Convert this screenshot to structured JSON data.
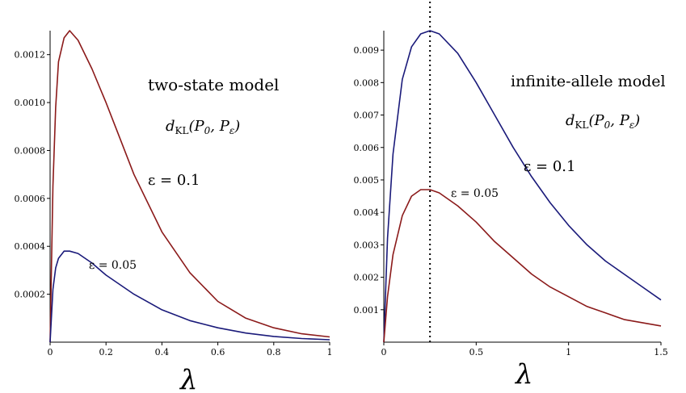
{
  "chart_data": [
    {
      "type": "line",
      "title": "two-state model",
      "subtitle": "d_KL(P0, Pε)",
      "xlabel": "λ",
      "ylabel": "",
      "xlim": [
        0,
        1
      ],
      "ylim": [
        0,
        0.0013
      ],
      "x_ticks": [
        "0",
        "0.2",
        "0.4",
        "0.6",
        "0.8",
        "1"
      ],
      "y_ticks": [
        "0.0002",
        "0.0004",
        "0.0006",
        "0.0008",
        "0.0010",
        "0.0012"
      ],
      "series": [
        {
          "name": "ε = 0.1",
          "color": "#8b1a1a",
          "x": [
            0,
            0.01,
            0.02,
            0.03,
            0.05,
            0.07,
            0.1,
            0.15,
            0.2,
            0.25,
            0.3,
            0.4,
            0.5,
            0.6,
            0.7,
            0.8,
            0.9,
            1.0
          ],
          "y": [
            0,
            0.00065,
            0.00098,
            0.00117,
            0.00127,
            0.0013,
            0.00126,
            0.00114,
            0.001,
            0.00085,
            0.0007,
            0.00046,
            0.00029,
            0.00017,
            0.0001,
            6e-05,
            3.5e-05,
            2.2e-05
          ]
        },
        {
          "name": "ε = 0.05",
          "color": "#1a1a7a",
          "x": [
            0,
            0.01,
            0.02,
            0.03,
            0.05,
            0.07,
            0.1,
            0.15,
            0.2,
            0.3,
            0.4,
            0.5,
            0.6,
            0.7,
            0.8,
            0.9,
            1.0
          ],
          "y": [
            0,
            0.00022,
            0.00031,
            0.00035,
            0.00038,
            0.00038,
            0.00037,
            0.00033,
            0.00028,
            0.0002,
            0.000135,
            9e-05,
            6e-05,
            3.8e-05,
            2.4e-05,
            1.5e-05,
            1e-05
          ]
        }
      ],
      "annotations": [
        "ε = 0.1",
        "ε = 0.05"
      ]
    },
    {
      "type": "line",
      "title": "infinite-allele model",
      "subtitle": "d_KL(P0, Pε)",
      "xlabel": "λ",
      "ylabel": "",
      "xlim": [
        0,
        1.5
      ],
      "ylim": [
        0,
        0.0096
      ],
      "x_ticks": [
        "0",
        "0.5",
        "1",
        "1.5"
      ],
      "y_ticks": [
        "0.001",
        "0.002",
        "0.003",
        "0.004",
        "0.005",
        "0.006",
        "0.007",
        "0.008",
        "0.009"
      ],
      "vline_x": 0.25,
      "series": [
        {
          "name": "ε = 0.1",
          "color": "#1a1a7a",
          "x": [
            0,
            0.02,
            0.05,
            0.1,
            0.15,
            0.2,
            0.25,
            0.3,
            0.4,
            0.5,
            0.6,
            0.7,
            0.8,
            0.9,
            1.0,
            1.1,
            1.2,
            1.3,
            1.4,
            1.5
          ],
          "y": [
            0,
            0.0032,
            0.0058,
            0.0081,
            0.0091,
            0.0095,
            0.0096,
            0.0095,
            0.0089,
            0.008,
            0.007,
            0.006,
            0.0051,
            0.0043,
            0.0036,
            0.003,
            0.0025,
            0.0021,
            0.0017,
            0.0013
          ]
        },
        {
          "name": "ε = 0.05",
          "color": "#8b1a1a",
          "x": [
            0,
            0.02,
            0.05,
            0.1,
            0.15,
            0.2,
            0.25,
            0.3,
            0.4,
            0.5,
            0.6,
            0.7,
            0.8,
            0.9,
            1.0,
            1.1,
            1.2,
            1.3,
            1.4,
            1.5
          ],
          "y": [
            0,
            0.0014,
            0.0027,
            0.0039,
            0.0045,
            0.0047,
            0.0047,
            0.0046,
            0.0042,
            0.0037,
            0.0031,
            0.0026,
            0.0021,
            0.0017,
            0.0014,
            0.0011,
            0.0009,
            0.0007,
            0.0006,
            0.0005
          ]
        }
      ],
      "annotations": [
        "ε = 0.1",
        "ε = 0.05"
      ]
    }
  ]
}
